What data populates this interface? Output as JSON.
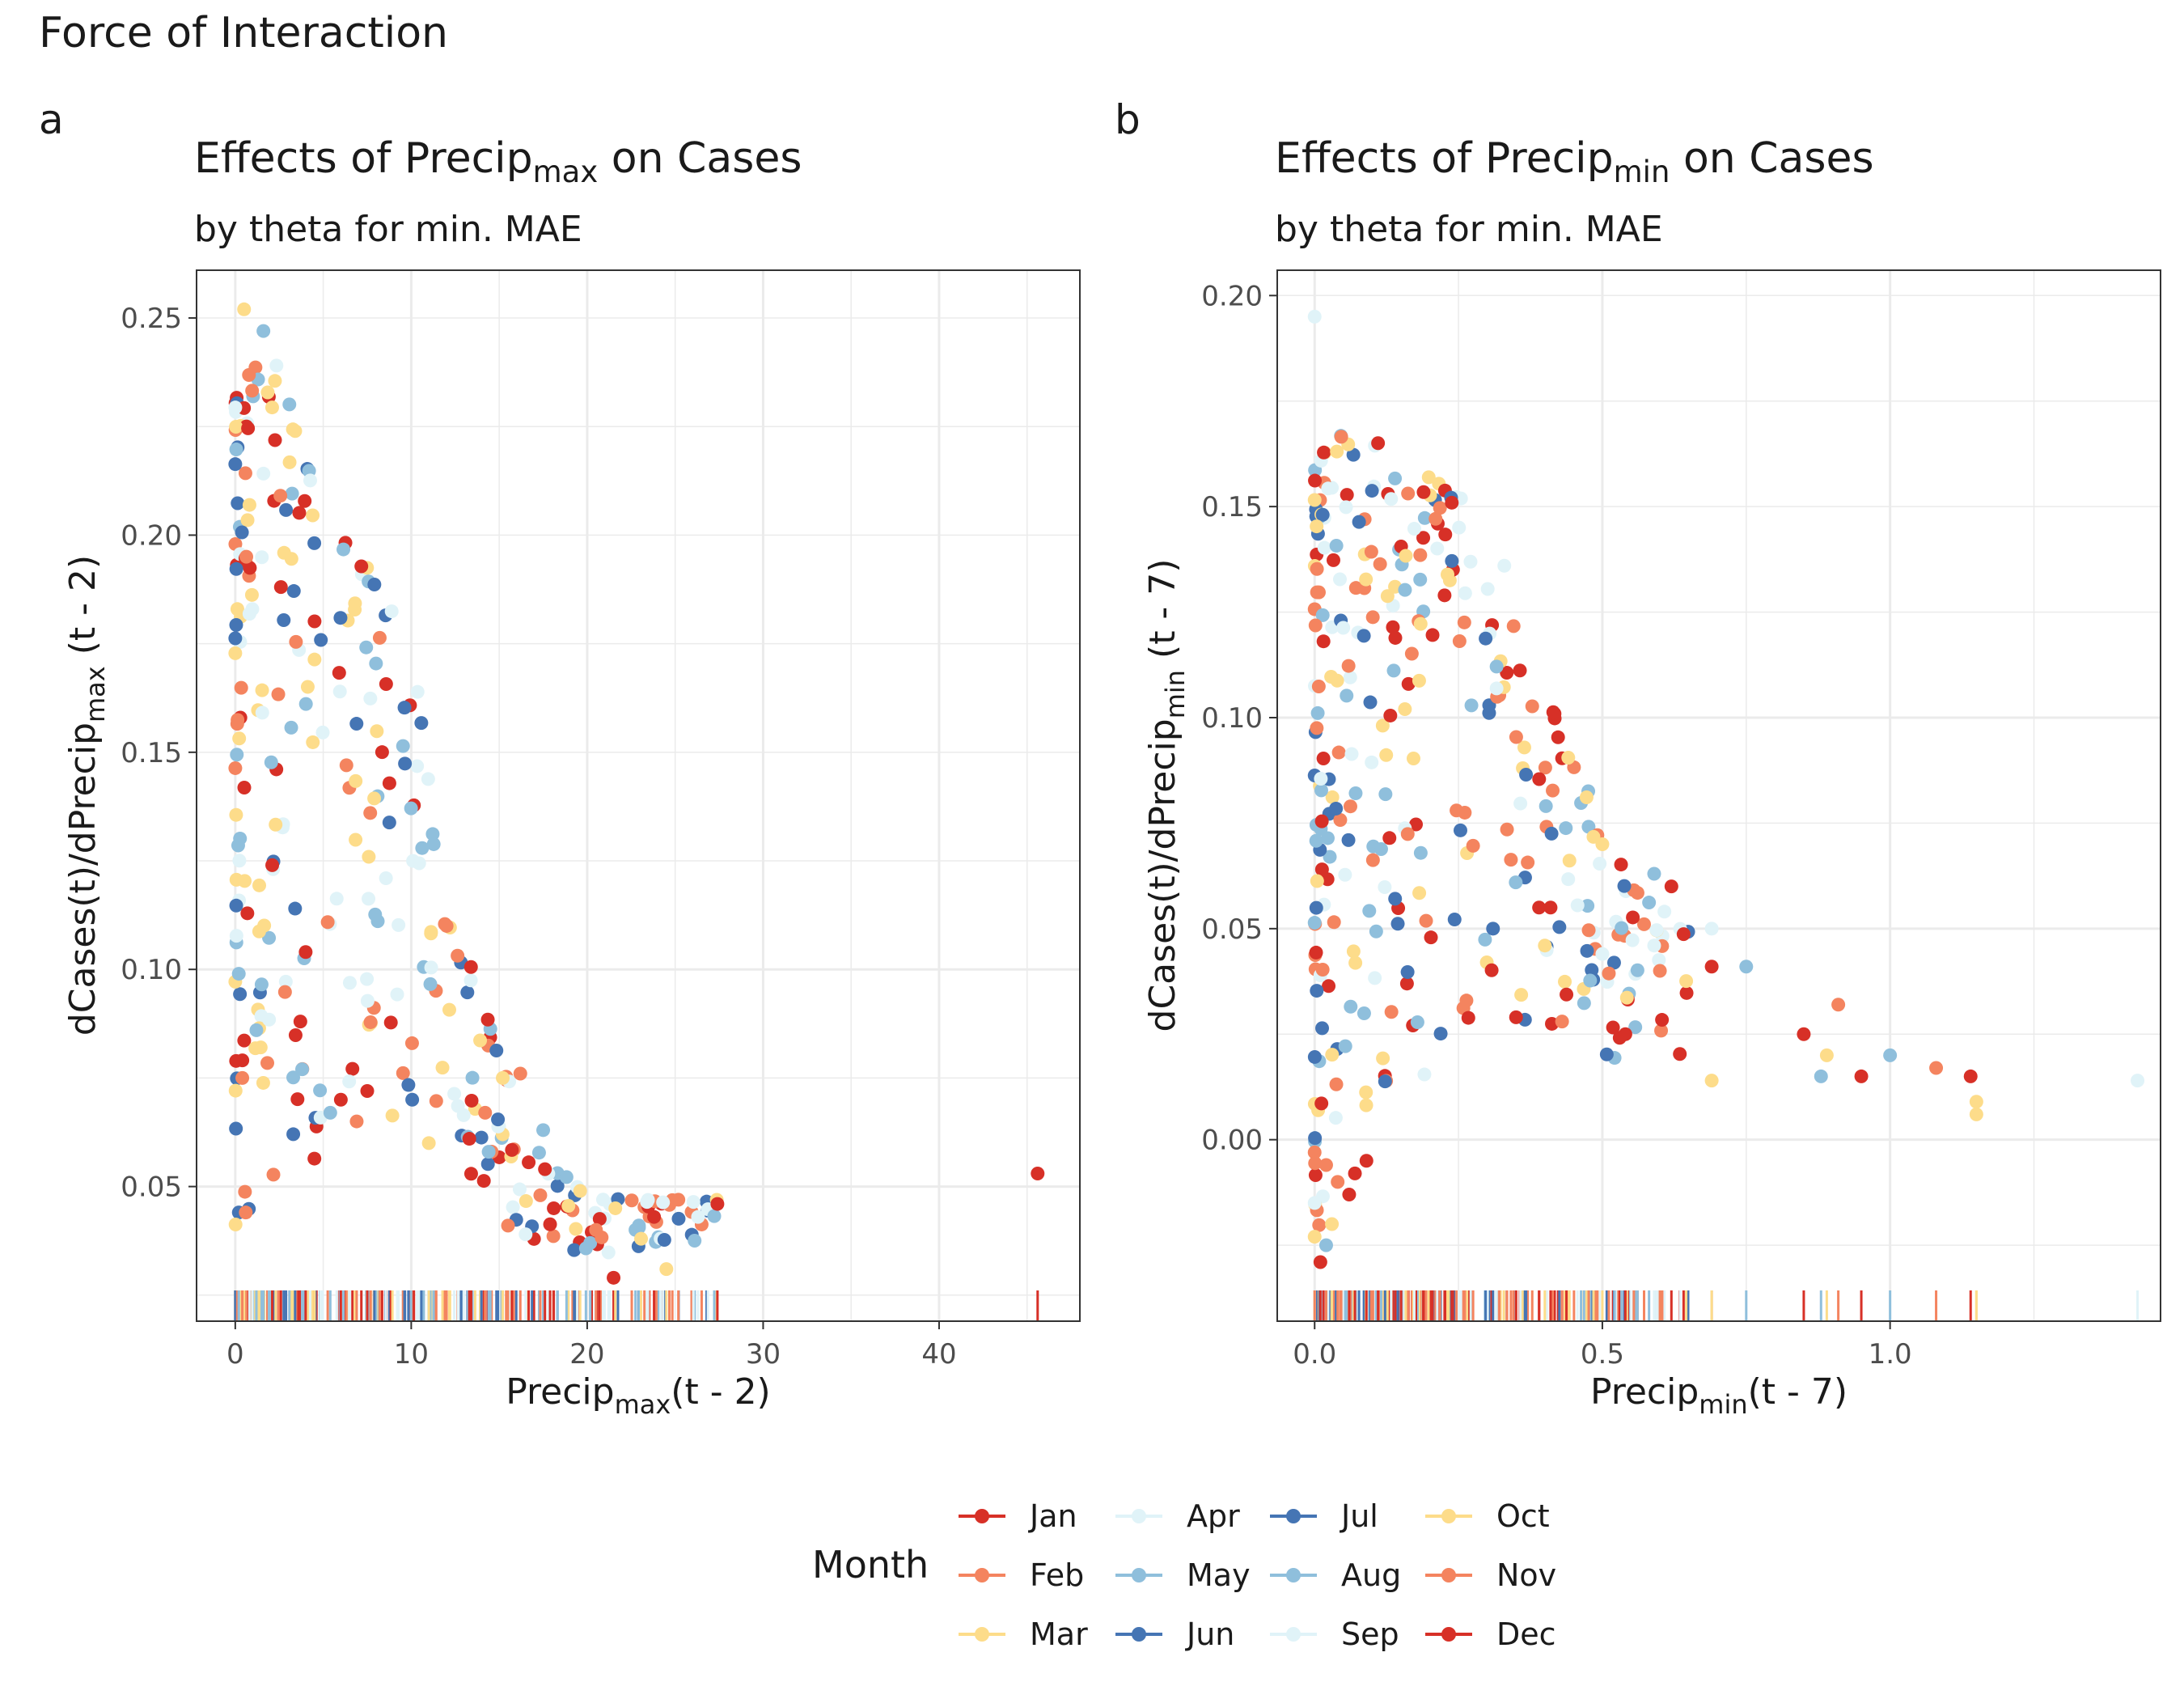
{
  "figure_title": "Force of Interaction",
  "legend": {
    "title": "Month",
    "months": [
      {
        "label": "Jan",
        "color": "#d73027"
      },
      {
        "label": "Feb",
        "color": "#f4845f"
      },
      {
        "label": "Mar",
        "color": "#fddc8a"
      },
      {
        "label": "Apr",
        "color": "#e0f3f8"
      },
      {
        "label": "May",
        "color": "#8fbfdc"
      },
      {
        "label": "Jun",
        "color": "#4575b4"
      },
      {
        "label": "Jul",
        "color": "#4575b4"
      },
      {
        "label": "Aug",
        "color": "#8fbfdc"
      },
      {
        "label": "Sep",
        "color": "#e0f3f8"
      },
      {
        "label": "Oct",
        "color": "#fddc8a"
      },
      {
        "label": "Nov",
        "color": "#f4845f"
      },
      {
        "label": "Dec",
        "color": "#d73027"
      }
    ]
  },
  "chart_data": [
    {
      "panel_label": "a",
      "type": "scatter",
      "title_prefix": "Effects of Precip",
      "title_sub": "max",
      "title_suffix": " on Cases",
      "subtitle": "by theta for min. MAE",
      "xlabel_prefix": "Precip",
      "xlabel_sub": "max",
      "xlabel_suffix": "(t - 2)",
      "ylabel_prefix": "dCases(t)/dPrecip",
      "ylabel_sub": "max",
      "ylabel_suffix": " (t - 2)",
      "xlim": [
        -2.2,
        48
      ],
      "ylim": [
        0.019,
        0.261
      ],
      "xticks": [
        0,
        10,
        20,
        30,
        40
      ],
      "xtick_labels": [
        "0",
        "10",
        "20",
        "30",
        "40"
      ],
      "yticks": [
        0.05,
        0.1,
        0.15,
        0.2,
        0.25
      ],
      "ytick_labels": [
        "0.05",
        "0.10",
        "0.15",
        "0.20",
        "0.25"
      ],
      "grid": true,
      "rug": true,
      "envelope": [
        [
          0.1,
          0.232
        ],
        [
          1.0,
          0.243
        ],
        [
          2.2,
          0.243
        ],
        [
          3.5,
          0.225
        ],
        [
          5.0,
          0.203
        ],
        [
          7.0,
          0.196
        ],
        [
          9.0,
          0.182
        ],
        [
          10.5,
          0.165
        ],
        [
          12.0,
          0.115
        ],
        [
          13.5,
          0.1
        ],
        [
          15.0,
          0.08
        ],
        [
          17.0,
          0.06
        ],
        [
          19.0,
          0.052
        ],
        [
          22.0,
          0.047
        ],
        [
          27.5,
          0.047
        ]
      ],
      "outliers": [
        [
          45.6,
          0.053,
          1
        ],
        [
          0.5,
          0.252,
          3
        ],
        [
          1.6,
          0.247,
          5
        ],
        [
          0.4,
          0.075,
          2
        ],
        [
          1.2,
          0.086,
          5
        ],
        [
          0.2,
          0.099,
          5
        ],
        [
          3.7,
          0.088,
          1
        ],
        [
          3.8,
          0.077,
          5
        ],
        [
          5.4,
          0.067,
          8
        ],
        [
          7.5,
          0.072,
          12
        ],
        [
          6.9,
          0.065,
          2
        ],
        [
          4.0,
          0.104,
          1
        ],
        [
          6.0,
          0.07,
          12
        ],
        [
          2.1,
          0.124,
          12
        ],
        [
          3.4,
          0.114,
          6
        ],
        [
          16.5,
          0.039,
          9
        ],
        [
          15.5,
          0.041,
          11
        ],
        [
          21.5,
          0.029,
          1
        ],
        [
          24.5,
          0.031,
          10
        ],
        [
          26.3,
          0.043,
          4
        ],
        [
          23.8,
          0.043,
          12
        ],
        [
          27.4,
          0.046,
          1
        ],
        [
          20.5,
          0.04,
          2
        ],
        [
          19.6,
          0.049,
          3
        ],
        [
          21.6,
          0.045,
          10
        ],
        [
          20.9,
          0.047,
          9
        ],
        [
          17.5,
          0.063,
          8
        ],
        [
          16.2,
          0.076,
          2
        ],
        [
          15.2,
          0.075,
          10
        ],
        [
          17.6,
          0.054,
          1
        ],
        [
          18.1,
          0.045,
          12
        ],
        [
          14.4,
          0.058,
          5
        ],
        [
          13.3,
          0.061,
          12
        ],
        [
          11.0,
          0.06,
          3
        ],
        [
          14.2,
          0.067,
          11
        ]
      ]
    },
    {
      "panel_label": "b",
      "type": "scatter",
      "title_prefix": "Effects of Precip",
      "title_sub": "min",
      "title_suffix": " on Cases",
      "subtitle": "by theta for min. MAE",
      "xlabel_prefix": "Precip",
      "xlabel_sub": "min",
      "xlabel_suffix": "(t - 7)",
      "ylabel_prefix": "dCases(t)/dPrecip",
      "ylabel_sub": "min",
      "ylabel_suffix": " (t - 7)",
      "xlim": [
        -0.065,
        1.47
      ],
      "ylim": [
        -0.043,
        0.206
      ],
      "xticks": [
        0.0,
        0.5,
        1.0
      ],
      "xtick_labels": [
        "0.0",
        "0.5",
        "1.0"
      ],
      "yticks": [
        0.0,
        0.05,
        0.1,
        0.15,
        0.2
      ],
      "ytick_labels": [
        "0.00",
        "0.05",
        "0.10",
        "0.15",
        "0.20"
      ],
      "grid": true,
      "rug": true,
      "envelope": [
        [
          0.0,
          0.16
        ],
        [
          0.03,
          0.167
        ],
        [
          0.1,
          0.167
        ],
        [
          0.2,
          0.157
        ],
        [
          0.28,
          0.15
        ],
        [
          0.33,
          0.138
        ],
        [
          0.37,
          0.115
        ],
        [
          0.41,
          0.105
        ],
        [
          0.45,
          0.09
        ],
        [
          0.48,
          0.082
        ],
        [
          0.52,
          0.068
        ],
        [
          0.58,
          0.06
        ],
        [
          0.65,
          0.05
        ]
      ],
      "outliers": [
        [
          0.0,
          0.195,
          4
        ],
        [
          1.43,
          0.014,
          9
        ],
        [
          1.15,
          0.009,
          10
        ],
        [
          1.15,
          0.006,
          3
        ],
        [
          1.14,
          0.015,
          12
        ],
        [
          1.08,
          0.017,
          2
        ],
        [
          1.0,
          0.02,
          5
        ],
        [
          0.95,
          0.015,
          1
        ],
        [
          0.88,
          0.015,
          8
        ],
        [
          0.89,
          0.02,
          3
        ],
        [
          0.85,
          0.025,
          12
        ],
        [
          0.91,
          0.032,
          11
        ],
        [
          0.75,
          0.041,
          8
        ],
        [
          0.69,
          0.041,
          1
        ],
        [
          0.69,
          0.05,
          9
        ],
        [
          0.69,
          0.014,
          10
        ],
        [
          0.62,
          0.06,
          1
        ],
        [
          0.59,
          0.063,
          5
        ],
        [
          0.6,
          0.04,
          2
        ],
        [
          0.59,
          0.046,
          9
        ],
        [
          0.54,
          0.025,
          12
        ],
        [
          0.5,
          0.044,
          4
        ],
        [
          0.5,
          0.07,
          3
        ],
        [
          0.43,
          0.028,
          11
        ],
        [
          0.41,
          0.055,
          12
        ],
        [
          0.39,
          0.055,
          1
        ],
        [
          0.35,
          0.029,
          12
        ],
        [
          0.31,
          0.05,
          6
        ],
        [
          0.4,
          0.046,
          3
        ],
        [
          0.02,
          -0.025,
          5
        ],
        [
          0.01,
          -0.029,
          1
        ],
        [
          0.03,
          -0.02,
          3
        ],
        [
          0.06,
          -0.013,
          12
        ],
        [
          0.09,
          -0.005,
          1
        ],
        [
          0.04,
          -0.01,
          2
        ],
        [
          0.0,
          -0.015,
          9
        ],
        [
          0.0,
          -0.023,
          3
        ],
        [
          0.07,
          -0.008,
          1
        ],
        [
          0.02,
          -0.006,
          11
        ],
        [
          0.0,
          -0.003,
          2
        ]
      ]
    }
  ]
}
